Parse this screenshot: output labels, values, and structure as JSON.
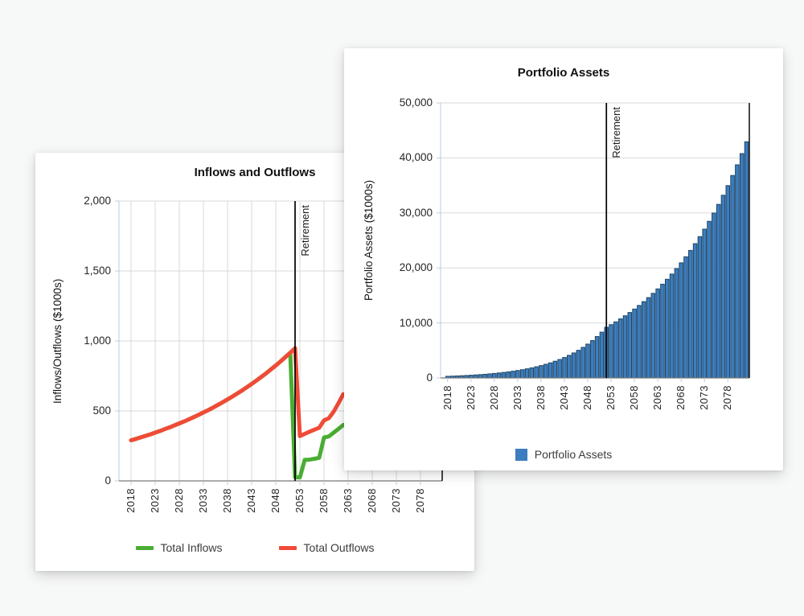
{
  "page": {
    "background_color": "#f7f8f8"
  },
  "charts": [
    {
      "title": "Inflows and Outflows",
      "y_axis_title": "Inflows/Outflows ($1000s)",
      "retirement_label": "Retirement",
      "y_tick_labels": [
        "0",
        "500",
        "1,000",
        "1,500",
        "2,000"
      ],
      "x_tick_labels": [
        "2018",
        "2023",
        "2028",
        "2033",
        "2038",
        "2043",
        "2048",
        "2053",
        "2058",
        "2063",
        "2068",
        "2073",
        "2078"
      ],
      "legend": [
        {
          "label": "Total Inflows",
          "color": "#4aad33"
        },
        {
          "label": "Total Outflows",
          "color": "#f04b37"
        }
      ]
    },
    {
      "title": "Portfolio Assets",
      "y_axis_title": "Portfolio Assets ($1000s)",
      "retirement_label": "Retirement",
      "y_tick_labels": [
        "0",
        "10,000",
        "20,000",
        "30,000",
        "40,000",
        "50,000"
      ],
      "x_tick_labels": [
        "2018",
        "2023",
        "2028",
        "2033",
        "2038",
        "2043",
        "2048",
        "2053",
        "2058",
        "2063",
        "2068",
        "2073",
        "2078"
      ],
      "legend": [
        {
          "label": "Portfolio Assets",
          "color": "#3c7dbf"
        }
      ]
    }
  ],
  "chart_data": [
    {
      "type": "line",
      "title": "Inflows and Outflows",
      "ylabel": "Inflows/Outflows ($1000s)",
      "xlim": [
        2015.5,
        2082.5
      ],
      "ylim": [
        0,
        2000
      ],
      "y_ticks": [
        0,
        500,
        1000,
        1500,
        2000
      ],
      "x_ticks": [
        2018,
        2023,
        2028,
        2033,
        2038,
        2043,
        2048,
        2053,
        2058,
        2063,
        2068,
        2073,
        2078
      ],
      "grid": "both",
      "legend_position": "bottom",
      "annotation": {
        "label": "Retirement",
        "x": 2052
      },
      "x": [
        2018,
        2019,
        2020,
        2021,
        2022,
        2023,
        2024,
        2025,
        2026,
        2027,
        2028,
        2029,
        2030,
        2031,
        2032,
        2033,
        2034,
        2035,
        2036,
        2037,
        2038,
        2039,
        2040,
        2041,
        2042,
        2043,
        2044,
        2045,
        2046,
        2047,
        2048,
        2049,
        2050,
        2051,
        2052,
        2053,
        2054,
        2055,
        2056,
        2057,
        2058,
        2059,
        2060,
        2061,
        2062
      ],
      "series": [
        {
          "name": "Total Inflows",
          "color": "#4aad33",
          "values": [
            290,
            300,
            311,
            322,
            333,
            345,
            357,
            370,
            383,
            397,
            411,
            425,
            440,
            456,
            472,
            489,
            506,
            524,
            543,
            562,
            582,
            603,
            624,
            646,
            669,
            693,
            718,
            743,
            769,
            797,
            825,
            854,
            885,
            916,
            25,
            25,
            150,
            152,
            158,
            165,
            310,
            318,
            345,
            372,
            400
          ]
        },
        {
          "name": "Total Outflows",
          "color": "#f04b37",
          "values": [
            290,
            300,
            311,
            322,
            333,
            345,
            357,
            370,
            383,
            397,
            411,
            425,
            440,
            456,
            472,
            489,
            506,
            524,
            543,
            562,
            582,
            603,
            624,
            646,
            669,
            693,
            718,
            743,
            769,
            797,
            825,
            854,
            885,
            916,
            949,
            320,
            336,
            352,
            366,
            380,
            432,
            448,
            495,
            556,
            620
          ]
        }
      ]
    },
    {
      "type": "bar",
      "title": "Portfolio Assets",
      "ylabel": "Portfolio Assets ($1000s)",
      "xlim": [
        2016.5,
        2082.6
      ],
      "ylim": [
        0,
        50000
      ],
      "y_ticks": [
        0,
        10000,
        20000,
        30000,
        40000,
        50000
      ],
      "x_ticks": [
        2018,
        2023,
        2028,
        2033,
        2038,
        2043,
        2048,
        2053,
        2058,
        2063,
        2068,
        2073,
        2078
      ],
      "grid": "horizontal",
      "legend_position": "bottom",
      "annotation": {
        "label": "Retirement",
        "x": 2052
      },
      "bar_color": "#3c7dbf",
      "bar_border_color": "#1c4566",
      "categories": [
        2018,
        2019,
        2020,
        2021,
        2022,
        2023,
        2024,
        2025,
        2026,
        2027,
        2028,
        2029,
        2030,
        2031,
        2032,
        2033,
        2034,
        2035,
        2036,
        2037,
        2038,
        2039,
        2040,
        2041,
        2042,
        2043,
        2044,
        2045,
        2046,
        2047,
        2048,
        2049,
        2050,
        2051,
        2052,
        2053,
        2054,
        2055,
        2056,
        2057,
        2058,
        2059,
        2060,
        2061,
        2062,
        2063,
        2064,
        2065,
        2066,
        2067,
        2068,
        2069,
        2070,
        2071,
        2072,
        2073,
        2074,
        2075,
        2076,
        2077,
        2078,
        2079,
        2080,
        2081,
        2082
      ],
      "values": [
        300,
        332,
        367,
        406,
        449,
        496,
        549,
        607,
        671,
        742,
        821,
        908,
        1004,
        1110,
        1228,
        1358,
        1502,
        1661,
        1837,
        2032,
        2247,
        2485,
        2748,
        3039,
        3361,
        3717,
        4111,
        4547,
        5029,
        5562,
        6151,
        6803,
        7524,
        8322,
        9204,
        9689,
        10200,
        10737,
        11303,
        11898,
        12525,
        13185,
        13879,
        14610,
        15380,
        16190,
        17043,
        17941,
        18886,
        19881,
        20928,
        22030,
        23191,
        24412,
        25698,
        27052,
        28477,
        29977,
        31556,
        33218,
        34968,
        36810,
        38749,
        40790,
        42939
      ]
    }
  ]
}
